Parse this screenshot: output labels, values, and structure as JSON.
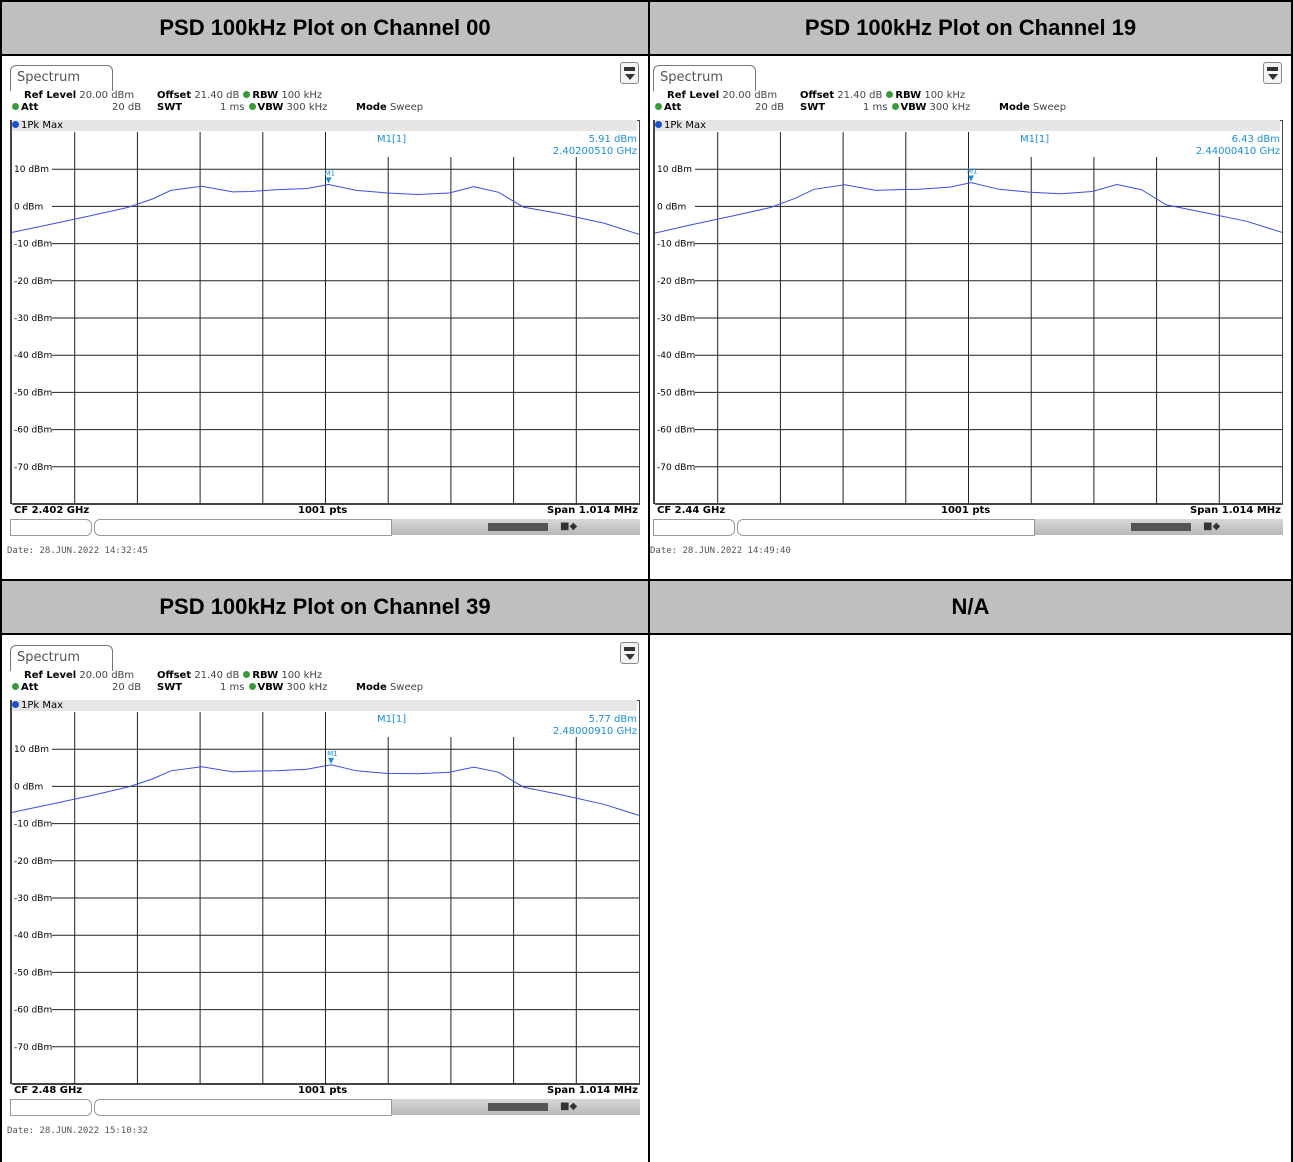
{
  "headers": [
    "PSD 100kHz Plot on Channel 00",
    "PSD 100kHz Plot on Channel 19",
    "PSD 100kHz Plot on Channel 39",
    "N/A"
  ],
  "common": {
    "tab_label": "Spectrum",
    "ref_level_label": "Ref Level",
    "ref_level_value": "20.00 dBm",
    "offset_label": "Offset",
    "offset_value": "21.40 dB",
    "rbw_label": "RBW",
    "rbw_value": "100 kHz",
    "att_label": "Att",
    "att_value": "20 dB",
    "swt_label": "SWT",
    "swt_value": "1 ms",
    "vbw_label": "VBW",
    "vbw_value": "300 kHz",
    "mode_label": "Mode",
    "mode_value": "Sweep",
    "trace_label": "1Pk Max",
    "marker_name": "M1[1]",
    "marker_tag": "M1",
    "pts": "1001 pts",
    "span": "Span 1.014 MHz",
    "y_tick_labels": [
      "10 dBm",
      "0 dBm",
      "-10 dBm",
      "-20 dBm",
      "-30 dBm",
      "-40 dBm",
      "-50 dBm",
      "-60 dBm",
      "-70 dBm"
    ],
    "colors": {
      "trace": "#3b4fe0",
      "marker": "#1a8fd8",
      "header_bg": "#bfbfbf"
    }
  },
  "plots": [
    {
      "marker_level": "5.91 dBm",
      "marker_freq": "2.40200510 GHz",
      "cf": "CF 2.402 GHz",
      "date": "Date: 28.JUN.2022  14:32:45"
    },
    {
      "marker_level": "6.43 dBm",
      "marker_freq": "2.44000410 GHz",
      "cf": "CF 2.44 GHz",
      "date": "Date: 28.JUN.2022  14:49:40"
    },
    {
      "marker_level": "5.77 dBm",
      "marker_freq": "2.48000910 GHz",
      "cf": "CF 2.48 GHz",
      "date": "Date: 28.JUN.2022  15:10:32"
    }
  ],
  "chart_data": [
    {
      "type": "line",
      "ylim": [
        -80,
        20
      ],
      "xlim": [
        -0.507,
        0.507
      ],
      "x_unit": "MHz offset from CF",
      "marker": {
        "x": 0.005,
        "y": 5.91
      },
      "x": [
        -0.507,
        -0.45,
        -0.38,
        -0.32,
        -0.28,
        -0.25,
        -0.2,
        -0.15,
        -0.12,
        -0.08,
        -0.03,
        0.005,
        0.05,
        0.1,
        0.15,
        0.2,
        0.24,
        0.28,
        0.32,
        0.38,
        0.45,
        0.507
      ],
      "y": [
        -7.0,
        -5.0,
        -2.5,
        -0.3,
        2.0,
        4.3,
        5.4,
        3.9,
        4.0,
        4.5,
        4.8,
        5.9,
        4.3,
        3.6,
        3.2,
        3.6,
        5.3,
        3.8,
        -0.2,
        -2.0,
        -4.5,
        -7.5
      ]
    },
    {
      "type": "line",
      "ylim": [
        -80,
        20
      ],
      "xlim": [
        -0.507,
        0.507
      ],
      "x_unit": "MHz offset from CF",
      "marker": {
        "x": 0.004,
        "y": 6.43
      },
      "x": [
        -0.507,
        -0.45,
        -0.38,
        -0.32,
        -0.28,
        -0.25,
        -0.2,
        -0.15,
        -0.12,
        -0.08,
        -0.03,
        0.004,
        0.05,
        0.1,
        0.15,
        0.2,
        0.24,
        0.28,
        0.32,
        0.38,
        0.45,
        0.507
      ],
      "y": [
        -7.2,
        -5.0,
        -2.5,
        -0.3,
        2.2,
        4.6,
        5.8,
        4.3,
        4.5,
        4.6,
        5.2,
        6.4,
        4.6,
        3.8,
        3.4,
        4.0,
        5.9,
        4.5,
        0.4,
        -1.6,
        -4.0,
        -7.0
      ]
    },
    {
      "type": "line",
      "ylim": [
        -80,
        20
      ],
      "xlim": [
        -0.507,
        0.507
      ],
      "x_unit": "MHz offset from CF",
      "marker": {
        "x": 0.009,
        "y": 5.77
      },
      "x": [
        -0.507,
        -0.45,
        -0.38,
        -0.32,
        -0.28,
        -0.25,
        -0.2,
        -0.15,
        -0.12,
        -0.08,
        -0.03,
        0.009,
        0.05,
        0.1,
        0.15,
        0.2,
        0.24,
        0.28,
        0.32,
        0.38,
        0.45,
        0.507
      ],
      "y": [
        -7.0,
        -5.0,
        -2.5,
        -0.2,
        2.0,
        4.2,
        5.3,
        3.9,
        4.1,
        4.2,
        4.6,
        5.8,
        4.2,
        3.5,
        3.4,
        3.8,
        5.2,
        3.8,
        -0.2,
        -2.2,
        -4.8,
        -7.8
      ]
    }
  ]
}
